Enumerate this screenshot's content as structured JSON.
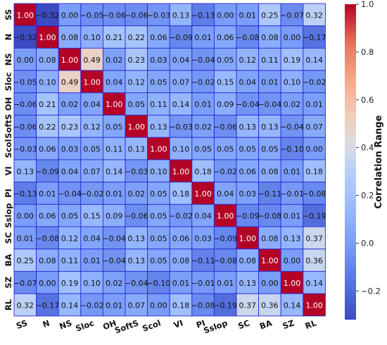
{
  "chart_data": {
    "type": "heatmap",
    "variables": [
      "SS",
      "N",
      "NS",
      "Sloc",
      "OH",
      "SoftS",
      "Scol",
      "VI",
      "PI",
      "Sslop",
      "SC",
      "BA",
      "SZ",
      "RL"
    ],
    "matrix": [
      [
        1.0,
        -0.32,
        -0.0,
        -0.05,
        -0.06,
        -0.06,
        -0.03,
        0.13,
        -0.13,
        -0.0,
        0.01,
        0.25,
        -0.07,
        0.32
      ],
      [
        -0.32,
        1.0,
        0.08,
        0.1,
        0.21,
        0.22,
        0.06,
        -0.09,
        0.01,
        0.06,
        -0.08,
        0.08,
        0.0,
        -0.17
      ],
      [
        -0.0,
        0.08,
        1.0,
        0.49,
        0.02,
        0.23,
        0.03,
        0.04,
        -0.04,
        0.05,
        0.12,
        0.11,
        0.19,
        0.14
      ],
      [
        -0.05,
        0.1,
        0.49,
        1.0,
        0.04,
        0.12,
        0.05,
        0.07,
        -0.02,
        0.15,
        0.04,
        0.01,
        0.1,
        -0.02
      ],
      [
        -0.06,
        0.21,
        0.02,
        0.04,
        1.0,
        0.05,
        0.11,
        0.14,
        0.01,
        0.09,
        -0.04,
        -0.04,
        0.02,
        0.01
      ],
      [
        -0.06,
        0.22,
        0.23,
        0.12,
        0.05,
        1.0,
        0.13,
        -0.03,
        0.02,
        -0.06,
        0.13,
        0.13,
        -0.04,
        0.07
      ],
      [
        -0.03,
        0.06,
        0.03,
        0.05,
        0.11,
        0.13,
        1.0,
        0.1,
        0.05,
        0.05,
        0.05,
        0.05,
        -0.1,
        0.0
      ],
      [
        0.13,
        -0.09,
        0.04,
        0.07,
        0.14,
        -0.03,
        0.1,
        1.0,
        0.18,
        -0.02,
        0.06,
        0.08,
        0.01,
        0.18
      ],
      [
        -0.13,
        0.01,
        -0.04,
        -0.02,
        0.01,
        0.02,
        0.05,
        0.18,
        1.0,
        0.04,
        0.03,
        -0.11,
        -0.01,
        -0.08
      ],
      [
        -0.0,
        0.06,
        0.05,
        0.15,
        0.09,
        -0.06,
        0.05,
        -0.02,
        0.04,
        1.0,
        -0.09,
        -0.08,
        0.01,
        -0.19
      ],
      [
        0.01,
        -0.08,
        0.12,
        0.04,
        -0.04,
        0.13,
        0.05,
        0.06,
        0.03,
        -0.09,
        1.0,
        0.08,
        0.13,
        0.37
      ],
      [
        0.25,
        0.08,
        0.11,
        0.01,
        -0.04,
        0.13,
        0.05,
        0.08,
        -0.11,
        -0.08,
        0.08,
        1.0,
        -0.0,
        0.36
      ],
      [
        -0.07,
        0.0,
        0.19,
        0.1,
        0.02,
        -0.04,
        -0.1,
        0.01,
        -0.01,
        0.01,
        0.13,
        -0.0,
        1.0,
        0.14
      ],
      [
        0.32,
        -0.17,
        0.14,
        -0.02,
        0.01,
        0.07,
        0.0,
        0.18,
        -0.08,
        -0.19,
        0.37,
        0.36,
        0.14,
        1.0
      ]
    ],
    "value_range": [
      -0.32,
      1.0
    ],
    "colorbar_label": "Correlation Range",
    "colorbar_ticks": [
      "−0.2",
      "0.0",
      "0.2",
      "0.4",
      "0.6",
      "0.8",
      "1.0"
    ],
    "colormap": "coolwarm",
    "colors": {
      "low": "#3b4cc0",
      "mid": "#dddddd",
      "high": "#b40426",
      "cell_border": "#2a2ad8",
      "text": "#111111"
    }
  }
}
